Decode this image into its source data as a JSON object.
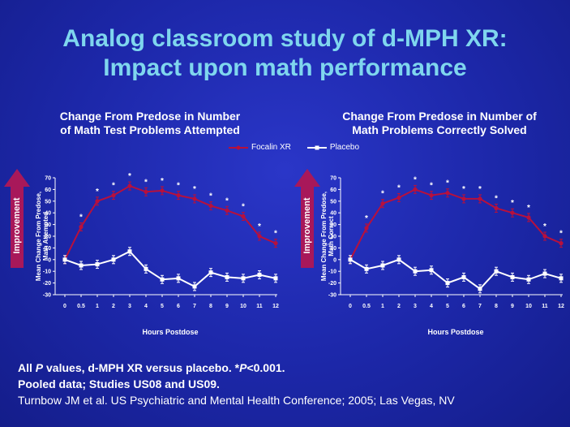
{
  "slide_title_line1": "Analog classroom study of d-MPH XR:",
  "slide_title_line2": "Impact upon math performance",
  "legend": {
    "focalin_label": "Focalin XR",
    "placebo_label": "Placebo"
  },
  "colors": {
    "focalin": "#b8103c",
    "placebo": "#ffffff",
    "arrow": "#a8185a"
  },
  "improvement_label": "Improvement",
  "chart_data": [
    {
      "type": "line",
      "title_line1": "Change From Predose in Number",
      "title_line2": "of Math Test Problems Attempted",
      "ylabel_line1": "Mean Change From Predose,",
      "ylabel_line2": "Math Attempted",
      "xlabel": "Hours Postdose",
      "x": [
        0,
        0.5,
        1,
        2,
        3,
        4,
        5,
        6,
        7,
        8,
        9,
        10,
        11,
        12
      ],
      "xticks": [
        "0",
        "0.5",
        "1",
        "2",
        "3",
        "4",
        "5",
        "6",
        "7",
        "8",
        "9",
        "10",
        "11",
        "12"
      ],
      "yticks": [
        -30,
        -20,
        -10,
        0,
        10,
        20,
        30,
        40,
        50,
        60,
        70
      ],
      "ylim": [
        -30,
        70
      ],
      "series": [
        {
          "name": "Focalin XR",
          "values": [
            0,
            28,
            50,
            55,
            63,
            58,
            59,
            55,
            52,
            46,
            42,
            37,
            20,
            14
          ],
          "significant": [
            false,
            true,
            true,
            true,
            true,
            true,
            true,
            true,
            true,
            true,
            true,
            true,
            true,
            true
          ]
        },
        {
          "name": "Placebo",
          "values": [
            0,
            -5,
            -4,
            0,
            7,
            -8,
            -17,
            -16,
            -23,
            -11,
            -15,
            -16,
            -13,
            -16
          ]
        }
      ],
      "sig_marker": "*"
    },
    {
      "type": "line",
      "title_line1": "Change From Predose in Number of",
      "title_line2": "Math Problems Correctly Solved",
      "ylabel_line1": "Mean Change From Predose,",
      "ylabel_line2": "Math Correct",
      "xlabel": "Hours Postdose",
      "x": [
        0,
        0.5,
        1,
        2,
        3,
        4,
        5,
        6,
        7,
        8,
        9,
        10,
        11,
        12
      ],
      "xticks": [
        "0",
        "0.5",
        "1",
        "2",
        "3",
        "4",
        "5",
        "6",
        "7",
        "8",
        "9",
        "10",
        "11",
        "12"
      ],
      "yticks": [
        -30,
        -20,
        -10,
        0,
        10,
        20,
        30,
        40,
        50,
        60,
        70
      ],
      "ylim": [
        -30,
        70
      ],
      "series": [
        {
          "name": "Focalin XR",
          "values": [
            0,
            27,
            48,
            53,
            60,
            55,
            57,
            52,
            52,
            44,
            40,
            36,
            20,
            14
          ],
          "significant": [
            false,
            true,
            true,
            true,
            true,
            true,
            true,
            true,
            true,
            true,
            true,
            true,
            true,
            true
          ]
        },
        {
          "name": "Placebo",
          "values": [
            0,
            -8,
            -5,
            0,
            -10,
            -9,
            -20,
            -15,
            -25,
            -10,
            -15,
            -17,
            -12,
            -16
          ]
        }
      ],
      "sig_marker": "*"
    }
  ],
  "footer": {
    "line1_a": "All ",
    "line1_p": "P",
    "line1_b": " values, d-MPH XR versus placebo. *",
    "line1_p2": "P",
    "line1_c": "<0.001.",
    "line2": "Pooled data; Studies US08 and US09.",
    "line3": "Turnbow JM et al. US Psychiatric and Mental Health Conference; 2005; Las Vegas, NV"
  }
}
